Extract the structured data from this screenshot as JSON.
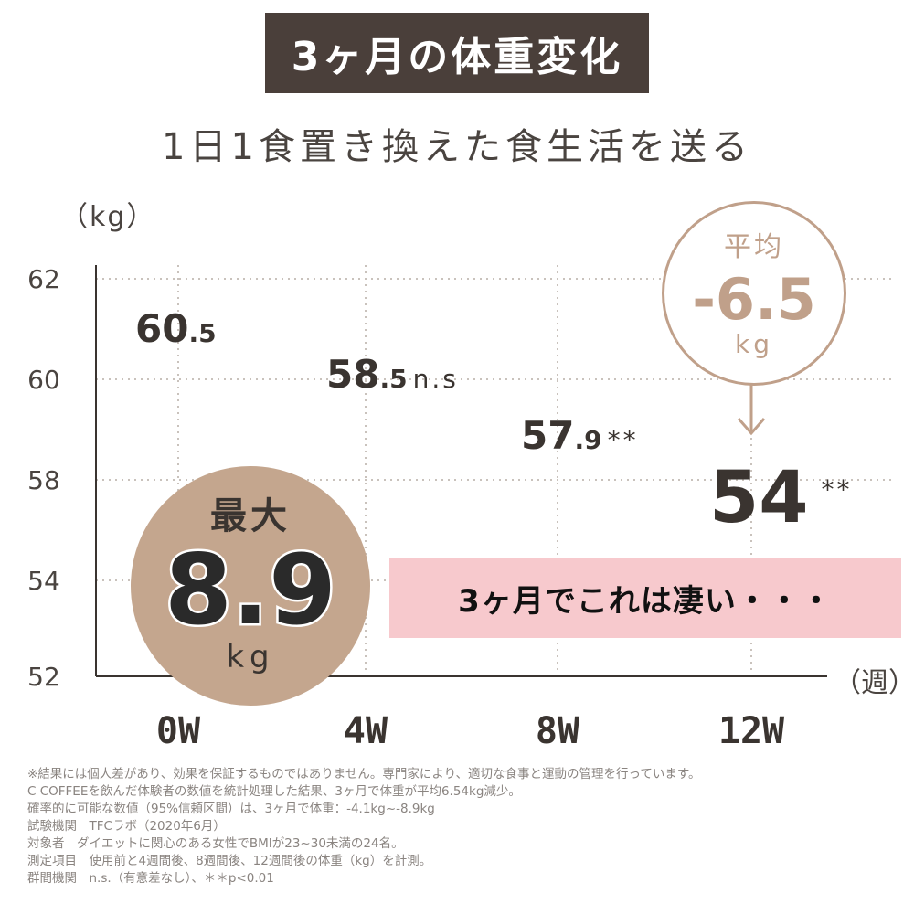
{
  "header": {
    "title": "3ヶ月の体重変化",
    "subtitle": "1日1食置き換えた食生活を送る"
  },
  "chart_data": {
    "type": "scatter",
    "xlabel": "（週）",
    "ylabel": "（kg）",
    "categories": [
      "0W",
      "4W",
      "8W",
      "12W"
    ],
    "yticks": [
      "62",
      "60",
      "58",
      "54",
      "52"
    ],
    "values": [
      60.5,
      58.5,
      57.9,
      54
    ],
    "labels": [
      {
        "main": "60",
        "decimal": ".5",
        "mark": ""
      },
      {
        "main": "58",
        "decimal": ".5",
        "mark": "n.s"
      },
      {
        "main": "57",
        "decimal": ".9",
        "mark": "**"
      },
      {
        "main": "54",
        "decimal": "",
        "mark": "**"
      }
    ],
    "grid": true,
    "text_color": "#3a3430"
  },
  "average_badge": {
    "top": "平均",
    "value": "-6.5",
    "unit": "kg",
    "color": "#c0a08a"
  },
  "max_badge": {
    "top": "最大",
    "value": "8.9",
    "unit": "kg",
    "color": "#c4a68e"
  },
  "comment": {
    "text": "3ヶ月でこれは凄い・・・",
    "color": "#f7c9cd"
  },
  "notes": [
    "※結果には個人差があり、効果を保証するものではありません。専門家により、適切な食事と運動の管理を行っています。",
    "C COFFEEを飲んだ体験者の数値を統計処理した結果、3ヶ月で体重が平均6.54kg減少。",
    "確率的に可能な数値（95%信頼区間）は、3ヶ月で体重：-4.1kg~-8.9kg",
    "試験機関　TFCラボ（2020年6月）",
    "対象者　ダイエットに関心のある女性でBMIが23~30未満の24名。",
    "測定項目　使用前と4週間後、8週間後、12週間後の体重（kg）を計測。",
    "群間機関　n.s.（有意差なし）、＊＊p<0.01"
  ]
}
